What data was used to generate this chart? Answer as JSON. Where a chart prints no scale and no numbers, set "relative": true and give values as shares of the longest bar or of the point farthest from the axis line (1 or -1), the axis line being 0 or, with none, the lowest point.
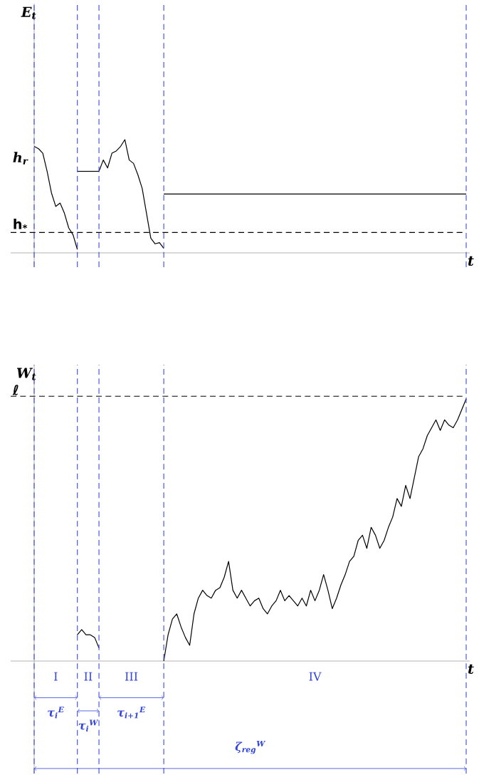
{
  "chart_data": [
    {
      "type": "line",
      "relative": true,
      "xlabel": "t",
      "ylabel": "E$_{t}$",
      "categories": [
        null,
        null,
        null,
        null,
        null,
        null,
        null,
        null,
        null,
        null,
        null,
        null,
        null,
        null,
        null,
        null,
        null,
        null,
        null,
        null,
        null,
        null,
        null,
        null,
        null,
        null,
        null,
        null,
        null,
        null,
        null,
        null,
        null,
        null,
        null,
        null,
        null,
        null,
        null,
        null,
        null,
        null,
        null,
        null,
        null,
        null,
        null,
        null,
        null,
        null,
        null,
        null,
        null,
        null,
        null,
        null,
        null,
        null,
        null,
        null,
        null,
        null,
        null,
        null,
        null,
        null,
        null,
        null,
        null,
        null,
        null,
        null,
        null,
        null,
        null,
        null,
        null,
        null,
        null,
        null,
        null,
        null,
        null,
        null,
        null,
        null,
        null,
        null,
        null,
        null,
        null,
        null,
        null,
        null,
        null,
        null,
        null,
        null,
        null,
        null,
        null
      ],
      "series": [
        {
          "color": "#000000",
          "values": [
            0.94,
            0.92,
            0.88,
            0.72,
            0.53,
            0.41,
            0.44,
            0.35,
            0.22,
            0.16,
            0.03,
            null,
            null,
            null,
            null,
            null,
            null,
            null,
            null,
            null,
            null,
            null,
            null,
            null,
            null,
            null,
            null,
            null,
            null,
            null,
            null,
            null,
            null,
            null,
            null,
            null,
            null,
            null,
            null,
            null,
            null,
            null,
            null,
            null,
            null,
            null,
            null,
            null,
            null,
            null,
            null,
            null,
            null,
            null,
            null,
            null,
            null,
            null,
            null,
            null,
            null,
            null,
            null,
            null,
            null,
            null,
            null,
            null,
            null,
            null,
            null,
            null,
            null,
            null,
            null,
            null,
            null,
            null,
            null,
            null,
            null,
            null,
            null,
            null,
            null,
            null,
            null,
            null,
            null,
            null,
            null,
            null,
            null,
            null,
            null,
            null,
            null,
            null,
            null,
            null,
            null
          ]
        },
        {
          "color": "#000000",
          "values": [
            null,
            null,
            null,
            null,
            null,
            null,
            null,
            null,
            null,
            null,
            0.72,
            0.72,
            0.72,
            0.72,
            0.72,
            0.72,
            null,
            null,
            null,
            null,
            null,
            null,
            null,
            null,
            null,
            null,
            null,
            null,
            null,
            null,
            null,
            null,
            null,
            null,
            null,
            null,
            null,
            null,
            null,
            null,
            null,
            null,
            null,
            null,
            null,
            null,
            null,
            null,
            null,
            null,
            null,
            null,
            null,
            null,
            null,
            null,
            null,
            null,
            null,
            null,
            null,
            null,
            null,
            null,
            null,
            null,
            null,
            null,
            null,
            null,
            null,
            null,
            null,
            null,
            null,
            null,
            null,
            null,
            null,
            null,
            null,
            null,
            null,
            null,
            null,
            null,
            null,
            null,
            null,
            null,
            null,
            null,
            null,
            null,
            null,
            null,
            null,
            null,
            null,
            null,
            null
          ]
        },
        {
          "color": "#000000",
          "values": [
            null,
            null,
            null,
            null,
            null,
            null,
            null,
            null,
            null,
            null,
            null,
            null,
            null,
            null,
            null,
            0.72,
            0.82,
            0.75,
            0.88,
            0.9,
            0.94,
            1,
            0.82,
            0.79,
            0.69,
            0.57,
            0.35,
            0.13,
            0.08,
            0.09,
            0.04,
            null,
            null,
            null,
            null,
            null,
            null,
            null,
            null,
            null,
            null,
            null,
            null,
            null,
            null,
            null,
            null,
            null,
            null,
            null,
            null,
            null,
            null,
            null,
            null,
            null,
            null,
            null,
            null,
            null,
            null,
            null,
            null,
            null,
            null,
            null,
            null,
            null,
            null,
            null,
            null,
            null,
            null,
            null,
            null,
            null,
            null,
            null,
            null,
            null,
            null,
            null,
            null,
            null,
            null,
            null,
            null,
            null,
            null,
            null,
            null,
            null,
            null,
            null,
            null,
            null,
            null,
            null,
            null,
            null,
            null
          ]
        },
        {
          "color": "#000000",
          "values": [
            null,
            null,
            null,
            null,
            null,
            null,
            null,
            null,
            null,
            null,
            null,
            null,
            null,
            null,
            null,
            null,
            null,
            null,
            null,
            null,
            null,
            null,
            null,
            null,
            null,
            null,
            null,
            null,
            null,
            null,
            0.52,
            0.52,
            0.52,
            0.52,
            0.52,
            0.52,
            0.52,
            0.52,
            0.52,
            0.52,
            0.52,
            0.52,
            0.52,
            0.52,
            0.52,
            0.52,
            0.52,
            0.52,
            0.52,
            0.52,
            0.52,
            0.52,
            0.52,
            0.52,
            0.52,
            0.52,
            0.52,
            0.52,
            0.52,
            0.52,
            0.52,
            0.52,
            0.52,
            0.52,
            0.52,
            0.52,
            0.52,
            0.52,
            0.52,
            0.52,
            0.52,
            0.52,
            0.52,
            0.52,
            0.52,
            0.52,
            0.52,
            0.52,
            0.52,
            0.52,
            0.52,
            0.52,
            0.52,
            0.52,
            0.52,
            0.52,
            0.52,
            0.52,
            0.52,
            0.52,
            0.52,
            0.52,
            0.52,
            0.52,
            0.52,
            0.52,
            0.52,
            0.52,
            0.52,
            0.52,
            0.52
          ]
        }
      ],
      "ref_lines": [
        {
          "axis": "y",
          "value": 0.18,
          "label": "h$_{*}$",
          "color": "#000000",
          "line_style": "dashed"
        }
      ],
      "grid": "x",
      "annotations": [
        "h$_{r}$"
      ]
    },
    {
      "type": "line",
      "relative": true,
      "xlabel": "t",
      "ylabel": "W$_{t}$",
      "categories": [
        null,
        null,
        null,
        null,
        null,
        null,
        null,
        null,
        null,
        null,
        null,
        null,
        null,
        null,
        null,
        null,
        null,
        null,
        null,
        null,
        null,
        null,
        null,
        null,
        null,
        null,
        null,
        null,
        null,
        null,
        null,
        null,
        null,
        null,
        null,
        null,
        null,
        null,
        null,
        null,
        null,
        null,
        null,
        null,
        null,
        null,
        null,
        null,
        null,
        null,
        null,
        null,
        null,
        null,
        null,
        null,
        null,
        null,
        null,
        null,
        null,
        null,
        null,
        null,
        null,
        null,
        null,
        null,
        null,
        null,
        null,
        null,
        null,
        null,
        null,
        null,
        null,
        null,
        null,
        null,
        null,
        null,
        null,
        null,
        null,
        null,
        null,
        null,
        null,
        null,
        null,
        null,
        null,
        null,
        null,
        null,
        null,
        null,
        null,
        null,
        null
      ],
      "series": [
        {
          "color": "#000000",
          "values": [
            null,
            null,
            null,
            null,
            null,
            null,
            null,
            null,
            null,
            null,
            0.1,
            0.12,
            0.1,
            0.1,
            0.09,
            0.05,
            null,
            null,
            null,
            null,
            null,
            null,
            null,
            null,
            null,
            null,
            null,
            null,
            null,
            null,
            null,
            null,
            null,
            null,
            null,
            null,
            null,
            null,
            null,
            null,
            null,
            null,
            null,
            null,
            null,
            null,
            null,
            null,
            null,
            null,
            null,
            null,
            null,
            null,
            null,
            null,
            null,
            null,
            null,
            null,
            null,
            null,
            null,
            null,
            null,
            null,
            null,
            null,
            null,
            null,
            null,
            null,
            null,
            null,
            null,
            null,
            null,
            null,
            null,
            null,
            null,
            null,
            null,
            null,
            null,
            null,
            null,
            null,
            null,
            null,
            null,
            null,
            null,
            null,
            null,
            null,
            null,
            null,
            null,
            null,
            null
          ]
        },
        {
          "color": "#000000",
          "values": [
            null,
            null,
            null,
            null,
            null,
            null,
            null,
            null,
            null,
            null,
            null,
            null,
            null,
            null,
            null,
            null,
            null,
            null,
            null,
            null,
            null,
            null,
            null,
            null,
            null,
            null,
            null,
            null,
            null,
            null,
            0,
            0.1,
            0.16,
            0.18,
            0.13,
            0.09,
            0.06,
            0.18,
            0.24,
            0.27,
            0.25,
            0.24,
            0.27,
            0.28,
            0.32,
            0.38,
            0.27,
            0.24,
            0.27,
            0.24,
            0.21,
            0.23,
            0.24,
            0.2,
            0.18,
            0.21,
            0.23,
            0.27,
            0.23,
            0.25,
            0.23,
            0.21,
            0.24,
            0.21,
            0.27,
            0.23,
            0.27,
            0.33,
            0.27,
            0.2,
            0.24,
            0.29,
            0.33,
            0.38,
            0.4,
            0.46,
            0.48,
            0.43,
            0.51,
            0.48,
            0.43,
            0.46,
            0.51,
            0.55,
            0.62,
            0.59,
            0.67,
            0.62,
            0.7,
            0.78,
            0.81,
            0.86,
            0.89,
            0.92,
            0.88,
            0.92,
            0.9,
            0.89,
            0.92,
            0.96,
            1
          ]
        }
      ],
      "ref_lines": [
        {
          "axis": "y",
          "value": 1.01,
          "label": "ℓ",
          "color": "#000000",
          "line_style": "dashed"
        }
      ],
      "grid": "x",
      "annotations": [
        "I",
        "II",
        "III",
        "IV",
        "τ$_{i}$$^{E}$",
        "τ$_{i}$$^{W}$",
        "τ$_{i+1}$$^{E}$",
        "ζ$_{reg}$$^{W}$"
      ]
    }
  ]
}
